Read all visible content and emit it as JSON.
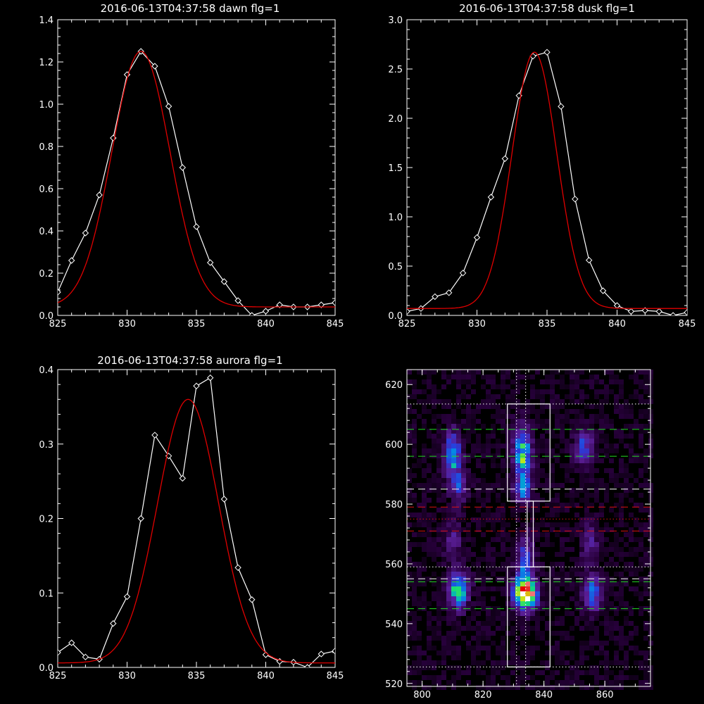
{
  "chart_data": [
    {
      "type": "line",
      "title": "2016-06-13T04:37:58 dawn flg=1",
      "xlim": [
        825,
        845
      ],
      "ylim": [
        0,
        1.4
      ],
      "xticks": [
        "825",
        "830",
        "835",
        "840",
        "845"
      ],
      "yticks": [
        "0.0",
        "0.2",
        "0.4",
        "0.6",
        "0.8",
        "1.0",
        "1.2",
        "1.4"
      ],
      "xtick_values": [
        825,
        830,
        835,
        840,
        845
      ],
      "ytick_values": [
        0,
        0.2,
        0.4,
        0.6,
        0.8,
        1.0,
        1.2,
        1.4
      ],
      "series": [
        {
          "color": "#ffffff",
          "marker": "diamond",
          "x": [
            825,
            826,
            827,
            828,
            829,
            830,
            831,
            832,
            833,
            834,
            835,
            836,
            837,
            838,
            839,
            840,
            841,
            842,
            843,
            844,
            845
          ],
          "y": [
            0.11,
            0.26,
            0.39,
            0.57,
            0.84,
            1.14,
            1.25,
            1.18,
            0.99,
            0.7,
            0.42,
            0.25,
            0.16,
            0.07,
            0.0,
            0.02,
            0.05,
            0.04,
            0.04,
            0.05,
            0.06
          ]
        },
        {
          "color": "#e00000",
          "smooth": true,
          "fit": {
            "amp": 1.21,
            "center": 831.0,
            "sigma": 2.1,
            "offset": 0.04
          }
        }
      ]
    },
    {
      "type": "line",
      "title": "2016-06-13T04:37:58 dusk flg=1",
      "xlim": [
        825,
        845
      ],
      "ylim": [
        0,
        3.0
      ],
      "xticks": [
        "825",
        "830",
        "835",
        "840",
        "845"
      ],
      "yticks": [
        "0.0",
        "0.5",
        "1.0",
        "1.5",
        "2.0",
        "2.5",
        "3.0"
      ],
      "xtick_values": [
        825,
        830,
        835,
        840,
        845
      ],
      "ytick_values": [
        0,
        0.5,
        1.0,
        1.5,
        2.0,
        2.5,
        3.0
      ],
      "series": [
        {
          "color": "#ffffff",
          "marker": "diamond",
          "x": [
            825,
            826,
            827,
            828,
            829,
            830,
            831,
            832,
            833,
            834,
            835,
            836,
            837,
            838,
            839,
            840,
            841,
            842,
            843,
            844,
            845
          ],
          "y": [
            0.04,
            0.07,
            0.19,
            0.23,
            0.43,
            0.79,
            1.2,
            1.59,
            2.23,
            2.63,
            2.67,
            2.12,
            1.18,
            0.56,
            0.25,
            0.1,
            0.04,
            0.05,
            0.04,
            0.0,
            0.03
          ]
        },
        {
          "color": "#e00000",
          "smooth": true,
          "fit": {
            "amp": 2.6,
            "center": 834.1,
            "sigma": 1.6,
            "offset": 0.07
          }
        }
      ]
    },
    {
      "type": "line",
      "title": "2016-06-13T04:37:58 aurora flg=1",
      "xlim": [
        825,
        845
      ],
      "ylim": [
        0,
        0.4
      ],
      "xticks": [
        "825",
        "830",
        "835",
        "840",
        "845"
      ],
      "yticks": [
        "0.0",
        "0.1",
        "0.2",
        "0.3",
        "0.4"
      ],
      "xtick_values": [
        825,
        830,
        835,
        840,
        845
      ],
      "ytick_values": [
        0,
        0.1,
        0.2,
        0.3,
        0.4
      ],
      "series": [
        {
          "color": "#ffffff",
          "marker": "diamond",
          "x": [
            825,
            826,
            827,
            828,
            829,
            830,
            831,
            832,
            833,
            834,
            835,
            836,
            837,
            838,
            839,
            840,
            841,
            842,
            843,
            844,
            845
          ],
          "y": [
            0.02,
            0.033,
            0.014,
            0.011,
            0.059,
            0.095,
            0.2,
            0.312,
            0.284,
            0.254,
            0.378,
            0.389,
            0.226,
            0.134,
            0.091,
            0.017,
            0.008,
            0.007,
            0.0,
            0.018,
            0.022
          ]
        },
        {
          "color": "#e00000",
          "smooth": true,
          "fit": {
            "amp": 0.354,
            "center": 834.4,
            "sigma": 2.2,
            "offset": 0.006
          }
        }
      ]
    },
    {
      "type": "heatmap",
      "xlim": [
        795,
        875
      ],
      "ylim": [
        519,
        625
      ],
      "xticks": [
        "800",
        "820",
        "840",
        "860"
      ],
      "yticks": [
        "520",
        "540",
        "560",
        "580",
        "600",
        "620"
      ],
      "xtick_values": [
        800,
        820,
        840,
        860
      ],
      "ytick_values": [
        520,
        540,
        560,
        580,
        600,
        620
      ],
      "blobs": [
        {
          "x": 810,
          "y": 597,
          "sx": 1.8,
          "sy": 5,
          "amp": 0.55
        },
        {
          "x": 812,
          "y": 586,
          "sx": 2,
          "sy": 4,
          "amp": 0.28
        },
        {
          "x": 833,
          "y": 597,
          "sx": 2,
          "sy": 6,
          "amp": 0.6
        },
        {
          "x": 833,
          "y": 585,
          "sx": 1.8,
          "sy": 3,
          "amp": 0.45
        },
        {
          "x": 853,
          "y": 599,
          "sx": 2,
          "sy": 4,
          "amp": 0.35
        },
        {
          "x": 812,
          "y": 551,
          "sx": 2.2,
          "sy": 4,
          "amp": 0.62
        },
        {
          "x": 834,
          "y": 550,
          "sx": 2.5,
          "sy": 3.5,
          "amp": 1.0
        },
        {
          "x": 834,
          "y": 560,
          "sx": 2,
          "sy": 6,
          "amp": 0.35
        },
        {
          "x": 856,
          "y": 550,
          "sx": 2,
          "sy": 4,
          "amp": 0.45
        },
        {
          "x": 810,
          "y": 568,
          "sx": 2,
          "sy": 5,
          "amp": 0.22
        },
        {
          "x": 855,
          "y": 567,
          "sx": 2,
          "sy": 5,
          "amp": 0.2
        }
      ],
      "boxes": [
        {
          "x0": 828,
          "x1": 842,
          "y0": 581,
          "y1": 613.5,
          "color": "#ffffff"
        },
        {
          "x0": 828,
          "x1": 842,
          "y0": 525.5,
          "y1": 559,
          "color": "#ffffff"
        },
        {
          "x0": 834.5,
          "x1": 836.5,
          "y0": 559,
          "y1": 581,
          "color": "#ffffff"
        }
      ],
      "hlines": [
        {
          "y": 613.5,
          "color": "#ffffff",
          "style": "dotted"
        },
        {
          "y": 605,
          "color": "#22dd22",
          "style": "dashed"
        },
        {
          "y": 596,
          "color": "#22dd22",
          "style": "dashed"
        },
        {
          "y": 585,
          "color": "#ffffff",
          "style": "dashed"
        },
        {
          "y": 579,
          "color": "#dd1111",
          "style": "dashed"
        },
        {
          "y": 575,
          "color": "#dd1111",
          "style": "dotted"
        },
        {
          "y": 571,
          "color": "#dd1111",
          "style": "dashed"
        },
        {
          "y": 559,
          "color": "#ffffff",
          "style": "dotted"
        },
        {
          "y": 555,
          "color": "#ffffff",
          "style": "dashed"
        },
        {
          "y": 554,
          "color": "#22dd22",
          "style": "dashed"
        },
        {
          "y": 545,
          "color": "#22dd22",
          "style": "dashed"
        },
        {
          "y": 525.5,
          "color": "#ffffff",
          "style": "dotted"
        }
      ],
      "vlines": [
        {
          "x": 831,
          "color": "#ffffff",
          "style": "dotted"
        },
        {
          "x": 834,
          "color": "#ffffff",
          "style": "dotted"
        }
      ]
    }
  ]
}
